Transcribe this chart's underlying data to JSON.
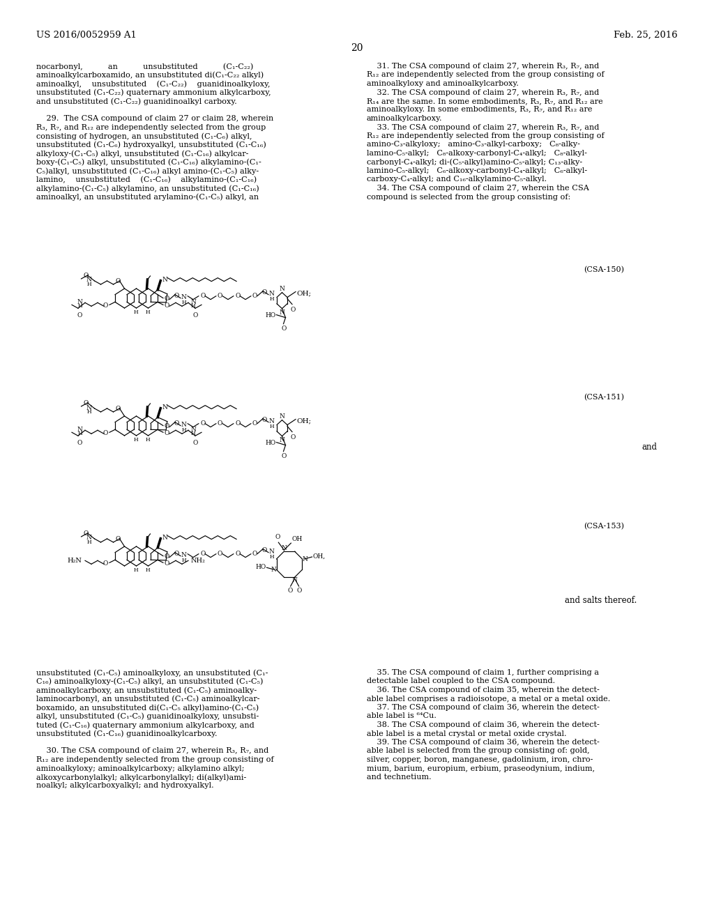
{
  "bg": "#ffffff",
  "header_left": "US 2016/0052959 A1",
  "header_right": "Feb. 25, 2016",
  "page_num": "20",
  "left_top": [
    "nocarbonyl,          an          unsubstituted          (C₁-C₂₂)",
    "aminoalkylcarboxamido, an unsubstituted di(C₁-C₂₂ alkyl)",
    "aminoalkyl,    unsubstituted    (C₁-C₂₂)    guanidinoalkyloxy,",
    "unsubstituted (C₁-C₂₂) quaternary ammonium alkylcarboxy,",
    "and unsubstituted (C₁-C₂₂) guanidinoalkyl carboxy.",
    "",
    "    29.  The CSA compound of claim 27 or claim 28, wherein",
    "R₃, R₇, and R₁₂ are independently selected from the group",
    "consisting of hydrogen, an unsubstituted (C₁-C₆) alkyl,",
    "unsubstituted (C₁-C₆) hydroxyalkyl, unsubstituted (C₁-C₁₆)",
    "alkyloxy-(C₁-C₅) alkyl, unsubstituted (C₁-C₁₆) alkylcar-",
    "boxy-(C₁-C₅) alkyl, unsubstituted (C₁-C₁₆) alkylamino-(C₁-",
    "C₅)alkyl, unsubstituted (C₁-C₁₆) alkyl amino-(C₁-C₅) alky-",
    "lamino,    unsubstituted    (C₁-C₁₆)    alkylamino-(C₁-C₁₆)",
    "alkylamino-(C₁-C₅) alkylamino, an unsubstituted (C₁-C₁₆)",
    "aminoalkyl, an unsubstituted arylamino-(C₁-C₅) alkyl, an"
  ],
  "right_top": [
    "    31. The CSA compound of claim 27, wherein R₃, R₇, and",
    "R₁₂ are independently selected from the group consisting of",
    "aminoalkyloxy and aminoalkylcarboxy.",
    "    32. The CSA compound of claim 27, wherein R₃, R₇, and",
    "R₁₄ are the same. In some embodiments, R₃, R₇, and R₁₂ are",
    "aminoalkyloxy. In some embodiments, R₃, R₇, and R₁₂ are",
    "aminoalkylcarboxy.",
    "    33. The CSA compound of claim 27, wherein R₃, R₇, and",
    "R₁₂ are independently selected from the group consisting of",
    "amino-C₃-alkyloxy;   amino-C₃-alkyl-carboxy;   C₈-alky-",
    "lamino-C₅-alkyl;   C₈-alkoxy-carbonyl-C₄-alkyl;   C₈-alkyl-",
    "carbonyl-C₄-alkyl; di-(C₅-alkyl)amino-C₅-alkyl; C₁₃-alky-",
    "lamino-C₅-alkyl;   C₆-alkoxy-carbonyl-C₄-alkyl;   C₆-alkyl-",
    "carboxy-C₄-alkyl; and C₁₆-alkylamino-C₅-alkyl.",
    "    34. The CSA compound of claim 27, wherein the CSA",
    "compound is selected from the group consisting of:"
  ],
  "left_bot": [
    "unsubstituted (C₁-C₅) aminoalkyloxy, an unsubstituted (C₁-",
    "C₁₆) aminoalkyloxy-(C₁-C₅) alkyl, an unsubstituted (C₁-C₅)",
    "aminoalkylcarboxy, an unsubstituted (C₁-C₅) aminoalky-",
    "laminocarbonyl, an unsubstituted (C₁-C₅) aminoalkylcar-",
    "boxamido, an unsubstituted di(C₁-C₅ alkyl)amino-(C₁-C₅)",
    "alkyl, unsubstituted (C₁-C₅) guanidinoalkyloxy, unsubsti-",
    "tuted (C₁-C₁₆) quaternary ammonium alkylcarboxy, and",
    "unsubstituted (C₁-C₁₆) guanidinoalkylcarboxy.",
    "",
    "    30. The CSA compound of claim 27, wherein R₃, R₇, and",
    "R₁₂ are independently selected from the group consisting of",
    "aminoalkyloxy; aminoalkylcarboxy; alkylamino alkyl;",
    "alkoxycarbonylalkyl; alkylcarbonylalkyl; di(alkyl)ami-",
    "noalkyl; alkylcarboxyalkyl; and hydroxyalkyl."
  ],
  "right_bot": [
    "    35. The CSA compound of claim 1, further comprising a",
    "detectable label coupled to the CSA compound.",
    "    36. The CSA compound of claim 35, wherein the detect-",
    "able label comprises a radioisotope, a metal or a metal oxide.",
    "    37. The CSA compound of claim 36, wherein the detect-",
    "able label is ⁶⁴Cu.",
    "    38. The CSA compound of claim 36, wherein the detect-",
    "able label is a metal crystal or metal oxide crystal.",
    "    39. The CSA compound of claim 36, wherein the detect-",
    "able label is selected from the group consisting of: gold,",
    "silver, copper, boron, manganese, gadolinium, iron, chro-",
    "mium, barium, europium, erbium, praseodynium, indium,",
    "and technetium."
  ]
}
